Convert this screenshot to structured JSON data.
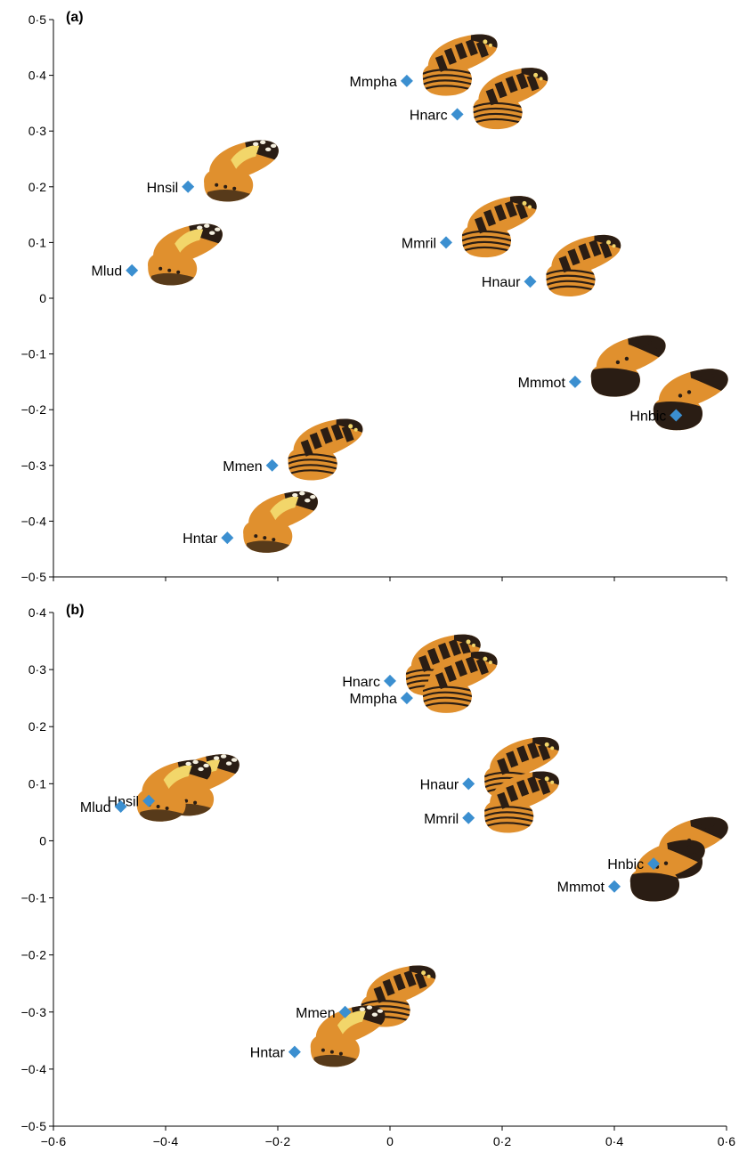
{
  "colors": {
    "marker": "#3b8fd0",
    "axis": "#000000",
    "wing_orange": "#e0902e",
    "wing_dark": "#2a1d14",
    "wing_yellow": "#f2d66a"
  },
  "marker_icon": "diamond",
  "chart_data": [
    {
      "type": "scatter",
      "panel_label": "(a)",
      "xlim": [
        -0.6,
        0.6
      ],
      "ylim": [
        -0.5,
        0.5
      ],
      "x_ticks": [
        -0.6,
        -0.4,
        -0.2,
        0,
        0.2,
        0.4,
        0.6
      ],
      "y_ticks": [
        0.5,
        0.4,
        0.3,
        0.2,
        0.1,
        0,
        -0.1,
        -0.2,
        -0.3,
        -0.4,
        -0.5
      ],
      "x_tick_labels": [
        "−0·6",
        "−0·4",
        "−0·2",
        "0",
        "0·2",
        "0·4",
        "0·6"
      ],
      "y_tick_labels": [
        "0·5",
        "0·4",
        "0·3",
        "0·2",
        "0·1",
        "0",
        "−0·1",
        "−0·2",
        "−0·3",
        "−0·4",
        "−0·5"
      ],
      "grid": false,
      "points": [
        {
          "label": "Mmpha",
          "x": 0.03,
          "y": 0.39,
          "wing": "tiger"
        },
        {
          "label": "Hnarc",
          "x": 0.12,
          "y": 0.33,
          "wing": "tiger"
        },
        {
          "label": "Hnsil",
          "x": -0.36,
          "y": 0.2,
          "wing": "yellowbar"
        },
        {
          "label": "Mlud",
          "x": -0.46,
          "y": 0.05,
          "wing": "yellowbar"
        },
        {
          "label": "Mmril",
          "x": 0.1,
          "y": 0.1,
          "wing": "tiger"
        },
        {
          "label": "Hnaur",
          "x": 0.25,
          "y": 0.03,
          "wing": "tiger"
        },
        {
          "label": "Mmmot",
          "x": 0.33,
          "y": -0.15,
          "wing": "darkbase"
        },
        {
          "label": "Hnbic",
          "x": 0.51,
          "y": -0.21,
          "wing": "darkbase"
        },
        {
          "label": "Mmen",
          "x": -0.21,
          "y": -0.3,
          "wing": "tiger"
        },
        {
          "label": "Hntar",
          "x": -0.29,
          "y": -0.43,
          "wing": "yellowbar"
        }
      ]
    },
    {
      "type": "scatter",
      "panel_label": "(b)",
      "xlim": [
        -0.6,
        0.6
      ],
      "ylim": [
        -0.5,
        0.4
      ],
      "x_ticks": [
        -0.6,
        -0.4,
        -0.2,
        0,
        0.2,
        0.4,
        0.6
      ],
      "y_ticks": [
        0.4,
        0.3,
        0.2,
        0.1,
        0,
        -0.1,
        -0.2,
        -0.3,
        -0.4,
        -0.5
      ],
      "x_tick_labels": [
        "−0·6",
        "−0·4",
        "−0·2",
        "0",
        "0·2",
        "0·4",
        "0·6"
      ],
      "y_tick_labels": [
        "0·4",
        "0·3",
        "0·2",
        "0·1",
        "0",
        "−0·1",
        "−0·2",
        "−0·3",
        "−0·4",
        "−0·5"
      ],
      "grid": false,
      "points": [
        {
          "label": "Hnarc",
          "x": 0.0,
          "y": 0.28,
          "wing": "tiger"
        },
        {
          "label": "Mmpha",
          "x": 0.03,
          "y": 0.25,
          "wing": "tiger"
        },
        {
          "label": "Hnsil",
          "x": -0.43,
          "y": 0.07,
          "wing": "yellowbar"
        },
        {
          "label": "Mlud",
          "x": -0.48,
          "y": 0.06,
          "wing": "yellowbar"
        },
        {
          "label": "Hnaur",
          "x": 0.14,
          "y": 0.1,
          "wing": "tiger"
        },
        {
          "label": "Mmril",
          "x": 0.14,
          "y": 0.04,
          "wing": "tiger"
        },
        {
          "label": "Hnbic",
          "x": 0.47,
          "y": -0.04,
          "wing": "darkbase"
        },
        {
          "label": "Mmmot",
          "x": 0.4,
          "y": -0.08,
          "wing": "darkbase"
        },
        {
          "label": "Mmen",
          "x": -0.08,
          "y": -0.3,
          "wing": "tiger"
        },
        {
          "label": "Hntar",
          "x": -0.17,
          "y": -0.37,
          "wing": "yellowbar"
        }
      ]
    }
  ]
}
